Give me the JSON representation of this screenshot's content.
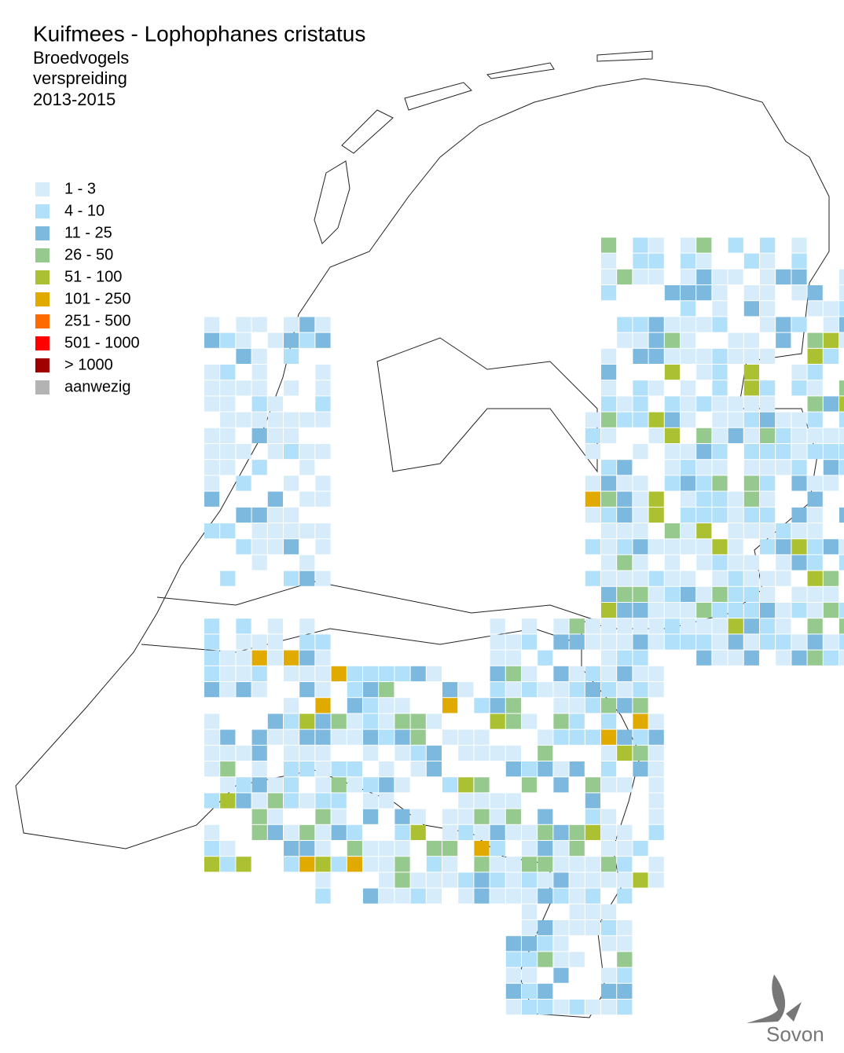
{
  "title": "Kuifmees - Lophophanes cristatus",
  "subtitle": [
    "Broedvogels",
    "verspreiding",
    "2013-2015"
  ],
  "legend": [
    {
      "label": "1 - 3",
      "color": "#d6ecfa"
    },
    {
      "label": "4 - 10",
      "color": "#b0e0fa"
    },
    {
      "label": "11 - 25",
      "color": "#7db9de"
    },
    {
      "label": "26 - 50",
      "color": "#95c98e"
    },
    {
      "label": "51 - 100",
      "color": "#acc132"
    },
    {
      "label": "101 - 250",
      "color": "#e0aa00"
    },
    {
      "label": "251 - 500",
      "color": "#ff6a00"
    },
    {
      "label": "501 - 1000",
      "color": "#ff0000"
    },
    {
      "label": "> 1000",
      "color": "#a00000"
    },
    {
      "label": "aanwezig",
      "color": "#b3b3b3"
    }
  ],
  "logo": "Sovon"
}
